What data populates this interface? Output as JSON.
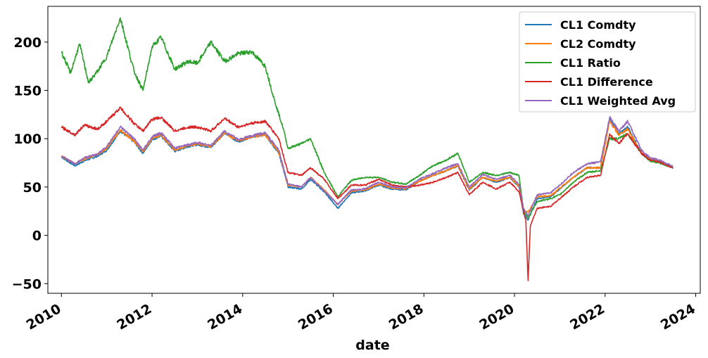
{
  "chart_data": {
    "type": "line",
    "title": "",
    "xlabel": "date",
    "ylabel": "",
    "xlim": [
      2009.7,
      2024.1
    ],
    "ylim": [
      -60,
      237
    ],
    "xticks": [
      2010,
      2012,
      2014,
      2016,
      2018,
      2020,
      2022,
      2024
    ],
    "xtick_labels": [
      "2010",
      "2012",
      "2014",
      "2016",
      "2018",
      "2020",
      "2022",
      "2024"
    ],
    "yticks": [
      -50,
      0,
      50,
      100,
      150,
      200
    ],
    "ytick_labels": [
      "−50",
      "0",
      "50",
      "100",
      "150",
      "200"
    ],
    "grid": false,
    "legend": "top-right",
    "series": [
      {
        "name": "CL1 Comdty",
        "color": "#1f77b4",
        "x": [
          2010.0,
          2010.3,
          2010.5,
          2010.8,
          2011.0,
          2011.3,
          2011.6,
          2011.8,
          2012.0,
          2012.2,
          2012.5,
          2012.8,
          2013.0,
          2013.3,
          2013.6,
          2013.9,
          2014.2,
          2014.5,
          2014.8,
          2015.0,
          2015.3,
          2015.5,
          2015.8,
          2016.1,
          2016.4,
          2016.7,
          2017.0,
          2017.3,
          2017.6,
          2017.9,
          2018.2,
          2018.5,
          2018.75,
          2019.0,
          2019.3,
          2019.6,
          2019.9,
          2020.1,
          2020.2,
          2020.3,
          2020.5,
          2020.8,
          2021.0,
          2021.3,
          2021.6,
          2021.9,
          2022.1,
          2022.3,
          2022.5,
          2022.8,
          2023.0,
          2023.2,
          2023.5
        ],
        "y": [
          81,
          72,
          77,
          82,
          88,
          108,
          97,
          85,
          99,
          103,
          87,
          92,
          94,
          91,
          106,
          97,
          102,
          104,
          85,
          50,
          48,
          58,
          45,
          28,
          44,
          46,
          52,
          48,
          47,
          56,
          62,
          67,
          72,
          47,
          60,
          55,
          60,
          50,
          22,
          16,
          38,
          40,
          48,
          60,
          70,
          70,
          120,
          105,
          112,
          85,
          78,
          76,
          70
        ]
      },
      {
        "name": "CL2 Comdty",
        "color": "#ff7f0e",
        "x": [
          2010.0,
          2010.3,
          2010.5,
          2010.8,
          2011.0,
          2011.3,
          2011.6,
          2011.8,
          2012.0,
          2012.2,
          2012.5,
          2012.8,
          2013.0,
          2013.3,
          2013.6,
          2013.9,
          2014.2,
          2014.5,
          2014.8,
          2015.0,
          2015.3,
          2015.5,
          2015.8,
          2016.1,
          2016.4,
          2016.7,
          2017.0,
          2017.3,
          2017.6,
          2017.9,
          2018.2,
          2018.5,
          2018.75,
          2019.0,
          2019.3,
          2019.6,
          2019.9,
          2020.1,
          2020.2,
          2020.3,
          2020.5,
          2020.8,
          2021.0,
          2021.3,
          2021.6,
          2021.9,
          2022.1,
          2022.3,
          2022.5,
          2022.8,
          2023.0,
          2023.2,
          2023.5
        ],
        "y": [
          82,
          74,
          79,
          84,
          90,
          109,
          98,
          87,
          100,
          104,
          88,
          93,
          95,
          92,
          106,
          98,
          102,
          104,
          86,
          52,
          50,
          60,
          47,
          32,
          46,
          47,
          53,
          49,
          48,
          56,
          62,
          67,
          72,
          48,
          60,
          56,
          60,
          51,
          26,
          24,
          40,
          41,
          49,
          60,
          70,
          70,
          118,
          104,
          110,
          85,
          78,
          76,
          70
        ]
      },
      {
        "name": "CL1 Ratio",
        "color": "#2ca02c",
        "x": [
          2010.0,
          2010.2,
          2010.4,
          2010.6,
          2010.8,
          2011.0,
          2011.3,
          2011.6,
          2011.8,
          2012.0,
          2012.2,
          2012.5,
          2012.8,
          2013.0,
          2013.3,
          2013.6,
          2013.9,
          2014.2,
          2014.5,
          2014.7,
          2014.9,
          2015.0,
          2015.3,
          2015.5,
          2015.8,
          2016.1,
          2016.4,
          2016.7,
          2017.0,
          2017.3,
          2017.6,
          2017.9,
          2018.2,
          2018.5,
          2018.75,
          2019.0,
          2019.3,
          2019.6,
          2019.9,
          2020.1,
          2020.2,
          2020.3,
          2020.5,
          2020.8,
          2021.0,
          2021.3,
          2021.6,
          2021.9,
          2022.1,
          2022.3,
          2022.5,
          2022.8,
          2023.0,
          2023.2,
          2023.5
        ],
        "y": [
          190,
          168,
          198,
          158,
          170,
          185,
          225,
          170,
          150,
          195,
          205,
          172,
          180,
          178,
          200,
          180,
          188,
          190,
          175,
          140,
          110,
          90,
          95,
          100,
          65,
          40,
          57,
          60,
          60,
          55,
          53,
          62,
          72,
          78,
          85,
          55,
          65,
          62,
          65,
          62,
          25,
          18,
          35,
          38,
          42,
          55,
          65,
          67,
          100,
          100,
          105,
          85,
          77,
          75,
          70
        ]
      },
      {
        "name": "CL1 Difference",
        "color": "#d62728",
        "x": [
          2010.0,
          2010.3,
          2010.5,
          2010.8,
          2011.0,
          2011.3,
          2011.6,
          2011.8,
          2012.0,
          2012.2,
          2012.5,
          2012.8,
          2013.0,
          2013.3,
          2013.6,
          2013.9,
          2014.2,
          2014.5,
          2014.8,
          2015.0,
          2015.3,
          2015.5,
          2015.8,
          2016.1,
          2016.4,
          2016.7,
          2017.0,
          2017.3,
          2017.6,
          2017.9,
          2018.2,
          2018.5,
          2018.75,
          2019.0,
          2019.3,
          2019.6,
          2019.9,
          2020.1,
          2020.25,
          2020.3,
          2020.35,
          2020.5,
          2020.8,
          2021.0,
          2021.3,
          2021.6,
          2021.9,
          2022.1,
          2022.3,
          2022.5,
          2022.8,
          2023.0,
          2023.2,
          2023.5
        ],
        "y": [
          112,
          104,
          114,
          110,
          118,
          132,
          116,
          108,
          120,
          122,
          108,
          112,
          112,
          108,
          121,
          112,
          116,
          118,
          100,
          65,
          62,
          70,
          58,
          38,
          52,
          52,
          58,
          52,
          50,
          52,
          55,
          60,
          65,
          42,
          55,
          48,
          55,
          45,
          15,
          -47,
          10,
          28,
          30,
          38,
          50,
          60,
          62,
          105,
          95,
          105,
          85,
          78,
          76,
          70
        ]
      },
      {
        "name": "CL1 Weighted Avg",
        "color": "#9467bd",
        "x": [
          2010.0,
          2010.3,
          2010.5,
          2010.8,
          2011.0,
          2011.3,
          2011.6,
          2011.8,
          2012.0,
          2012.2,
          2012.5,
          2012.8,
          2013.0,
          2013.3,
          2013.6,
          2013.9,
          2014.2,
          2014.5,
          2014.8,
          2015.0,
          2015.3,
          2015.5,
          2015.8,
          2016.1,
          2016.4,
          2016.7,
          2017.0,
          2017.3,
          2017.6,
          2017.9,
          2018.2,
          2018.5,
          2018.75,
          2019.0,
          2019.3,
          2019.6,
          2019.9,
          2020.1,
          2020.2,
          2020.3,
          2020.5,
          2020.8,
          2021.0,
          2021.3,
          2021.6,
          2021.9,
          2022.1,
          2022.3,
          2022.5,
          2022.8,
          2023.0,
          2023.2,
          2023.5
        ],
        "y": [
          82,
          74,
          80,
          84,
          92,
          112,
          100,
          88,
          102,
          106,
          90,
          94,
          96,
          93,
          108,
          99,
          103,
          106,
          88,
          53,
          50,
          60,
          46,
          32,
          47,
          48,
          55,
          50,
          49,
          58,
          64,
          70,
          74,
          50,
          63,
          58,
          62,
          53,
          28,
          20,
          42,
          44,
          52,
          65,
          74,
          76,
          122,
          108,
          118,
          88,
          80,
          78,
          71
        ]
      }
    ]
  }
}
